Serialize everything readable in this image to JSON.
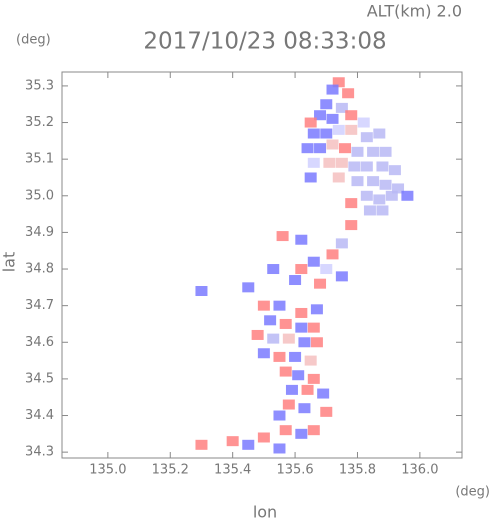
{
  "chart_data": {
    "type": "scatter",
    "title": "2017/10/23 08:33:08",
    "subtitle": "ALT(km) 2.0",
    "x_label": "lon",
    "y_label": "lat",
    "x_unit": "(deg)",
    "y_unit": "(deg)",
    "xlim": [
      134.853,
      136.135
    ],
    "ylim": [
      34.284,
      35.338
    ],
    "xticks": [
      {
        "value": 135.0,
        "label": "135.0"
      },
      135.2,
      135.4,
      135.6,
      135.8,
      {
        "value": 136.0,
        "label": "136.0"
      }
    ],
    "yticks": [
      34.3,
      34.4,
      34.5,
      34.6,
      34.7,
      34.8,
      34.9,
      {
        "value": 35.0,
        "label": "35.0"
      },
      35.1,
      35.2,
      35.3
    ],
    "x": [
      135.74,
      135.72,
      135.77,
      135.7,
      135.75,
      135.68,
      135.72,
      135.78,
      135.82,
      135.65,
      135.66,
      135.7,
      135.74,
      135.78,
      135.83,
      135.87,
      135.64,
      135.68,
      135.72,
      135.76,
      135.8,
      135.85,
      135.89,
      135.66,
      135.71,
      135.75,
      135.79,
      135.83,
      135.88,
      135.92,
      135.65,
      135.74,
      135.8,
      135.85,
      135.89,
      135.93,
      135.83,
      135.87,
      135.91,
      135.84,
      135.88,
      135.78,
      135.96,
      135.56,
      135.62,
      135.78,
      135.75,
      135.72,
      135.66,
      135.62,
      135.7,
      135.6,
      135.68,
      135.75,
      135.53,
      135.45,
      135.3,
      135.5,
      135.55,
      135.62,
      135.67,
      135.52,
      135.57,
      135.62,
      135.66,
      135.48,
      135.53,
      135.58,
      135.63,
      135.67,
      135.5,
      135.55,
      135.6,
      135.65,
      135.57,
      135.61,
      135.66,
      135.59,
      135.64,
      135.69,
      135.58,
      135.63,
      135.55,
      135.7,
      135.57,
      135.62,
      135.66,
      135.5,
      135.45,
      135.4,
      135.3,
      135.55
    ],
    "y": [
      35.31,
      35.29,
      35.28,
      35.25,
      35.24,
      35.22,
      35.21,
      35.22,
      35.2,
      35.2,
      35.17,
      35.17,
      35.18,
      35.18,
      35.16,
      35.17,
      35.13,
      35.13,
      35.14,
      35.13,
      35.12,
      35.12,
      35.12,
      35.09,
      35.09,
      35.09,
      35.08,
      35.08,
      35.08,
      35.07,
      35.05,
      35.05,
      35.04,
      35.04,
      35.03,
      35.02,
      35.0,
      34.99,
      35.0,
      34.96,
      34.96,
      34.98,
      35.0,
      34.89,
      34.88,
      34.92,
      34.87,
      34.84,
      34.82,
      34.8,
      34.8,
      34.77,
      34.76,
      34.78,
      34.8,
      34.75,
      34.74,
      34.7,
      34.7,
      34.68,
      34.69,
      34.66,
      34.65,
      34.64,
      34.64,
      34.62,
      34.61,
      34.61,
      34.6,
      34.6,
      34.57,
      34.56,
      34.56,
      34.55,
      34.52,
      34.51,
      34.5,
      34.47,
      34.47,
      34.46,
      34.43,
      34.42,
      34.4,
      34.41,
      34.36,
      34.35,
      34.36,
      34.34,
      34.32,
      34.33,
      34.32,
      34.31
    ],
    "colors": [
      "#ff8080",
      "#7a7aff",
      "#ff8080",
      "#7a7aff",
      "#b8b8f4",
      "#7a7aff",
      "#7a7aff",
      "#ff8080",
      "#d0d0ff",
      "#ff8080",
      "#7a7aff",
      "#7a7aff",
      "#d0d0ff",
      "#f4c0c0",
      "#b8b8f4",
      "#b8b8f4",
      "#7a7aff",
      "#7a7aff",
      "#f4c0c0",
      "#ff8080",
      "#b8b8f4",
      "#b8b8f4",
      "#b8b8f4",
      "#d0d0ff",
      "#f4c0c0",
      "#f4c0c0",
      "#b8b8f4",
      "#b8b8f4",
      "#b8b8f4",
      "#b8b8f4",
      "#7a7aff",
      "#f4c0c0",
      "#b8b8f4",
      "#b8b8f4",
      "#b8b8f4",
      "#b8b8f4",
      "#b8b8f4",
      "#b8b8f4",
      "#b8b8f4",
      "#b8b8f4",
      "#b8b8f4",
      "#ff8080",
      "#7a7aff",
      "#ff8080",
      "#7a7aff",
      "#ff8080",
      "#b8b8f4",
      "#ff8080",
      "#7a7aff",
      "#ff8080",
      "#d0d0ff",
      "#7a7aff",
      "#ff8080",
      "#7a7aff",
      "#7a7aff",
      "#7a7aff",
      "#7a7aff",
      "#ff8080",
      "#7a7aff",
      "#ff8080",
      "#7a7aff",
      "#7a7aff",
      "#ff8080",
      "#7a7aff",
      "#ff8080",
      "#ff8080",
      "#b8b8f4",
      "#f4c0c0",
      "#7a7aff",
      "#ff8080",
      "#7a7aff",
      "#ff8080",
      "#7a7aff",
      "#f4c0c0",
      "#ff8080",
      "#7a7aff",
      "#ff8080",
      "#7a7aff",
      "#ff8080",
      "#7a7aff",
      "#ff8080",
      "#7a7aff",
      "#7a7aff",
      "#ff8080",
      "#ff8080",
      "#7a7aff",
      "#ff8080",
      "#ff8080",
      "#7a7aff",
      "#ff8080",
      "#ff8080",
      "#7a7aff"
    ]
  }
}
